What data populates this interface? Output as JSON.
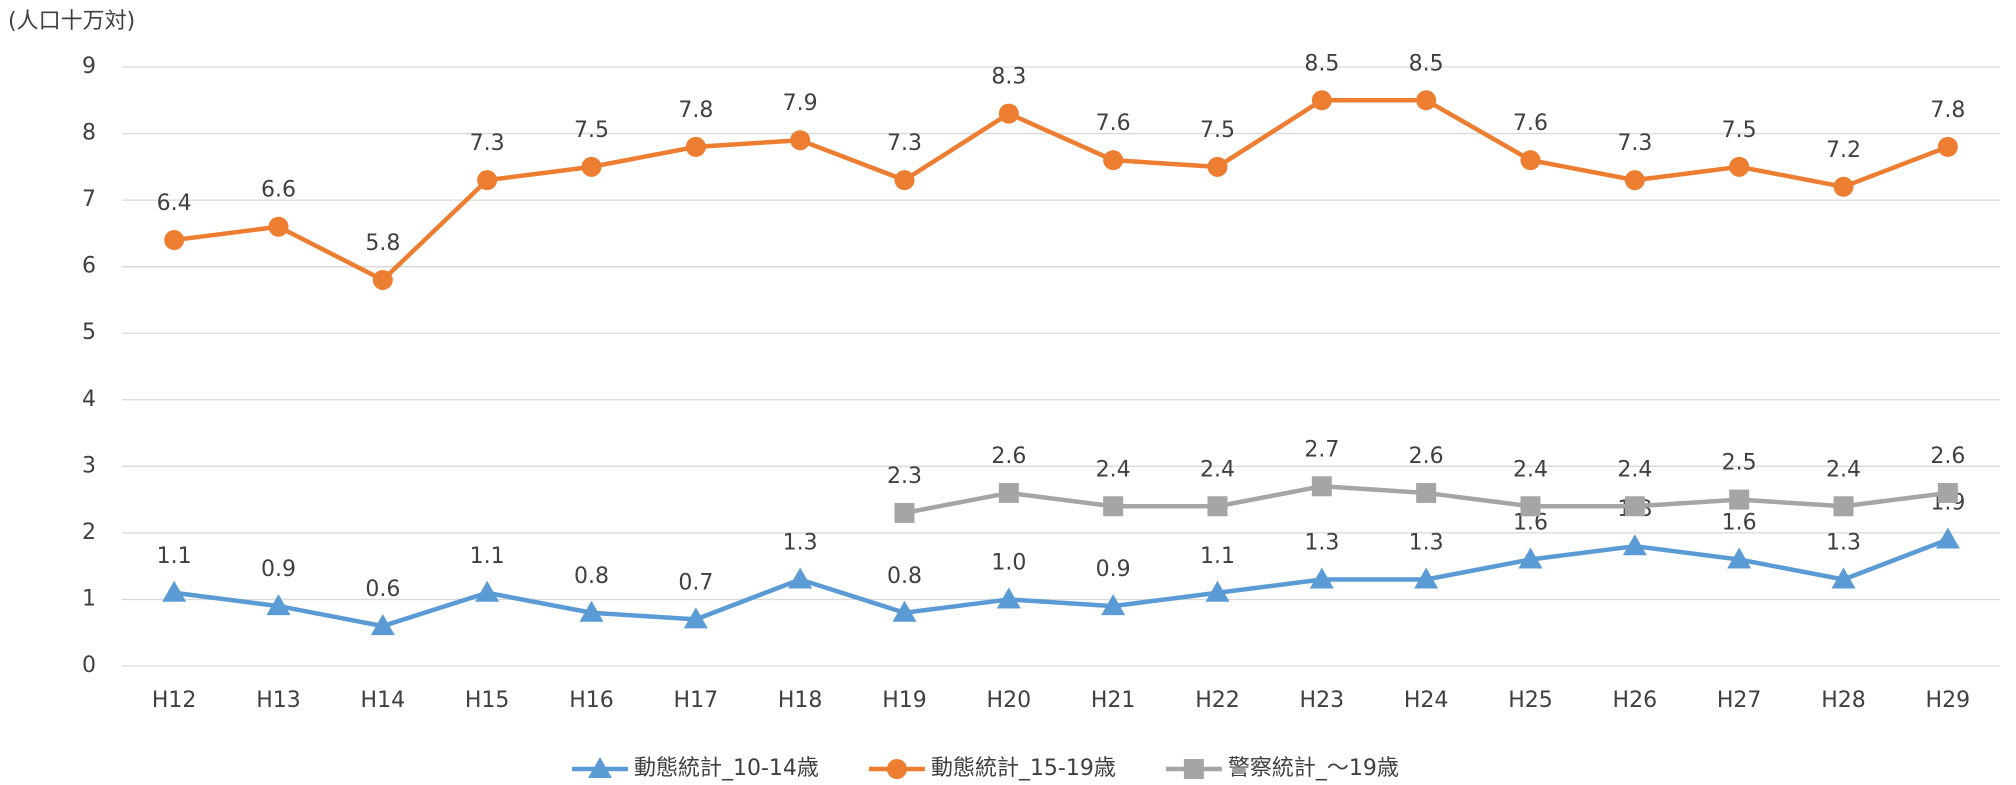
{
  "chart_data": {
    "type": "line",
    "y_axis_label": "(人口十万対)",
    "categories": [
      "H12",
      "H13",
      "H14",
      "H15",
      "H16",
      "H17",
      "H18",
      "H19",
      "H20",
      "H21",
      "H22",
      "H23",
      "H24",
      "H25",
      "H26",
      "H27",
      "H28",
      "H29"
    ],
    "series": [
      {
        "name": "動態統計_10-14歳",
        "color": "#5b9bd5",
        "marker": "triangle",
        "values": [
          1.1,
          0.9,
          0.6,
          1.1,
          0.8,
          0.7,
          1.3,
          0.8,
          1.0,
          0.9,
          1.1,
          1.3,
          1.3,
          1.6,
          1.8,
          1.6,
          1.3,
          1.9
        ],
        "value_labels": [
          "1.1",
          "0.9",
          "0.6",
          "1.1",
          "0.8",
          "0.7",
          "1.3",
          "0.8",
          "1.0",
          "0.9",
          "1.1",
          "1.3",
          "1.3",
          "1.6",
          "1.8",
          "1.6",
          "1.3",
          "1.9"
        ]
      },
      {
        "name": "動態統計_15-19歳",
        "color": "#ed7d31",
        "marker": "circle",
        "values": [
          6.4,
          6.6,
          5.8,
          7.3,
          7.5,
          7.8,
          7.9,
          7.3,
          8.3,
          7.6,
          7.5,
          8.5,
          8.5,
          7.6,
          7.3,
          7.5,
          7.2,
          7.8
        ]
      },
      {
        "name": "警察統計_～19歳",
        "color": "#a5a5a5",
        "marker": "square",
        "values": [
          null,
          null,
          null,
          null,
          null,
          null,
          null,
          2.3,
          2.6,
          2.4,
          2.4,
          2.7,
          2.6,
          2.4,
          2.4,
          2.5,
          2.4,
          2.6
        ]
      }
    ],
    "ylim": [
      0,
      9
    ],
    "yticks": [
      0,
      1,
      2,
      3,
      4,
      5,
      6,
      7,
      8,
      9
    ],
    "grid": true,
    "legend": "bottom"
  }
}
